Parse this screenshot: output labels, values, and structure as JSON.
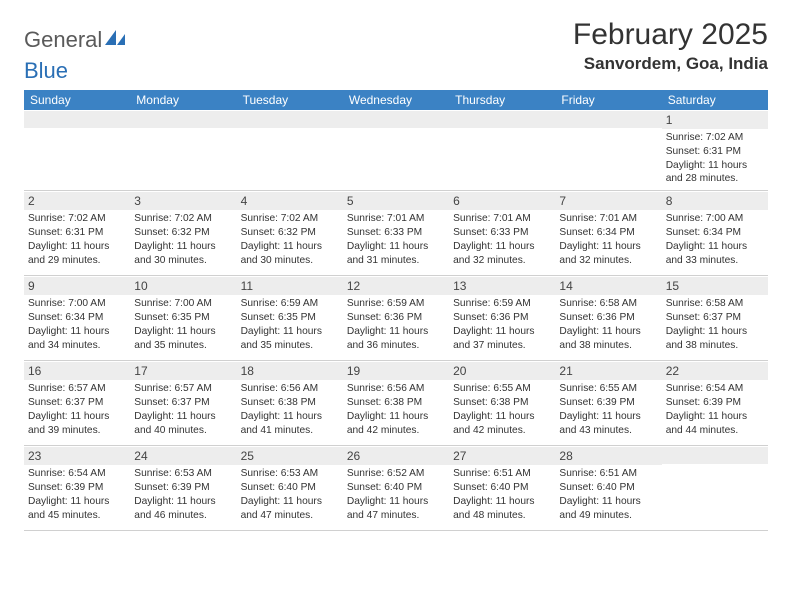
{
  "logo": {
    "text_gray": "General",
    "text_blue": "Blue"
  },
  "title": "February 2025",
  "location": "Sanvordem, Goa, India",
  "colors": {
    "header_bg": "#3b82c4",
    "header_text": "#ffffff",
    "daynum_bg": "#ededed",
    "border": "#d0d0d0",
    "text": "#333333",
    "logo_gray": "#5a5a5a",
    "logo_blue": "#2a6fb5"
  },
  "day_names": [
    "Sunday",
    "Monday",
    "Tuesday",
    "Wednesday",
    "Thursday",
    "Friday",
    "Saturday"
  ],
  "weeks": [
    [
      {
        "empty": true
      },
      {
        "empty": true
      },
      {
        "empty": true
      },
      {
        "empty": true
      },
      {
        "empty": true
      },
      {
        "empty": true
      },
      {
        "day": "1",
        "sunrise": "Sunrise: 7:02 AM",
        "sunset": "Sunset: 6:31 PM",
        "daylight": "Daylight: 11 hours and 28 minutes."
      }
    ],
    [
      {
        "day": "2",
        "sunrise": "Sunrise: 7:02 AM",
        "sunset": "Sunset: 6:31 PM",
        "daylight": "Daylight: 11 hours and 29 minutes."
      },
      {
        "day": "3",
        "sunrise": "Sunrise: 7:02 AM",
        "sunset": "Sunset: 6:32 PM",
        "daylight": "Daylight: 11 hours and 30 minutes."
      },
      {
        "day": "4",
        "sunrise": "Sunrise: 7:02 AM",
        "sunset": "Sunset: 6:32 PM",
        "daylight": "Daylight: 11 hours and 30 minutes."
      },
      {
        "day": "5",
        "sunrise": "Sunrise: 7:01 AM",
        "sunset": "Sunset: 6:33 PM",
        "daylight": "Daylight: 11 hours and 31 minutes."
      },
      {
        "day": "6",
        "sunrise": "Sunrise: 7:01 AM",
        "sunset": "Sunset: 6:33 PM",
        "daylight": "Daylight: 11 hours and 32 minutes."
      },
      {
        "day": "7",
        "sunrise": "Sunrise: 7:01 AM",
        "sunset": "Sunset: 6:34 PM",
        "daylight": "Daylight: 11 hours and 32 minutes."
      },
      {
        "day": "8",
        "sunrise": "Sunrise: 7:00 AM",
        "sunset": "Sunset: 6:34 PM",
        "daylight": "Daylight: 11 hours and 33 minutes."
      }
    ],
    [
      {
        "day": "9",
        "sunrise": "Sunrise: 7:00 AM",
        "sunset": "Sunset: 6:34 PM",
        "daylight": "Daylight: 11 hours and 34 minutes."
      },
      {
        "day": "10",
        "sunrise": "Sunrise: 7:00 AM",
        "sunset": "Sunset: 6:35 PM",
        "daylight": "Daylight: 11 hours and 35 minutes."
      },
      {
        "day": "11",
        "sunrise": "Sunrise: 6:59 AM",
        "sunset": "Sunset: 6:35 PM",
        "daylight": "Daylight: 11 hours and 35 minutes."
      },
      {
        "day": "12",
        "sunrise": "Sunrise: 6:59 AM",
        "sunset": "Sunset: 6:36 PM",
        "daylight": "Daylight: 11 hours and 36 minutes."
      },
      {
        "day": "13",
        "sunrise": "Sunrise: 6:59 AM",
        "sunset": "Sunset: 6:36 PM",
        "daylight": "Daylight: 11 hours and 37 minutes."
      },
      {
        "day": "14",
        "sunrise": "Sunrise: 6:58 AM",
        "sunset": "Sunset: 6:36 PM",
        "daylight": "Daylight: 11 hours and 38 minutes."
      },
      {
        "day": "15",
        "sunrise": "Sunrise: 6:58 AM",
        "sunset": "Sunset: 6:37 PM",
        "daylight": "Daylight: 11 hours and 38 minutes."
      }
    ],
    [
      {
        "day": "16",
        "sunrise": "Sunrise: 6:57 AM",
        "sunset": "Sunset: 6:37 PM",
        "daylight": "Daylight: 11 hours and 39 minutes."
      },
      {
        "day": "17",
        "sunrise": "Sunrise: 6:57 AM",
        "sunset": "Sunset: 6:37 PM",
        "daylight": "Daylight: 11 hours and 40 minutes."
      },
      {
        "day": "18",
        "sunrise": "Sunrise: 6:56 AM",
        "sunset": "Sunset: 6:38 PM",
        "daylight": "Daylight: 11 hours and 41 minutes."
      },
      {
        "day": "19",
        "sunrise": "Sunrise: 6:56 AM",
        "sunset": "Sunset: 6:38 PM",
        "daylight": "Daylight: 11 hours and 42 minutes."
      },
      {
        "day": "20",
        "sunrise": "Sunrise: 6:55 AM",
        "sunset": "Sunset: 6:38 PM",
        "daylight": "Daylight: 11 hours and 42 minutes."
      },
      {
        "day": "21",
        "sunrise": "Sunrise: 6:55 AM",
        "sunset": "Sunset: 6:39 PM",
        "daylight": "Daylight: 11 hours and 43 minutes."
      },
      {
        "day": "22",
        "sunrise": "Sunrise: 6:54 AM",
        "sunset": "Sunset: 6:39 PM",
        "daylight": "Daylight: 11 hours and 44 minutes."
      }
    ],
    [
      {
        "day": "23",
        "sunrise": "Sunrise: 6:54 AM",
        "sunset": "Sunset: 6:39 PM",
        "daylight": "Daylight: 11 hours and 45 minutes."
      },
      {
        "day": "24",
        "sunrise": "Sunrise: 6:53 AM",
        "sunset": "Sunset: 6:39 PM",
        "daylight": "Daylight: 11 hours and 46 minutes."
      },
      {
        "day": "25",
        "sunrise": "Sunrise: 6:53 AM",
        "sunset": "Sunset: 6:40 PM",
        "daylight": "Daylight: 11 hours and 47 minutes."
      },
      {
        "day": "26",
        "sunrise": "Sunrise: 6:52 AM",
        "sunset": "Sunset: 6:40 PM",
        "daylight": "Daylight: 11 hours and 47 minutes."
      },
      {
        "day": "27",
        "sunrise": "Sunrise: 6:51 AM",
        "sunset": "Sunset: 6:40 PM",
        "daylight": "Daylight: 11 hours and 48 minutes."
      },
      {
        "day": "28",
        "sunrise": "Sunrise: 6:51 AM",
        "sunset": "Sunset: 6:40 PM",
        "daylight": "Daylight: 11 hours and 49 minutes."
      },
      {
        "empty": true
      }
    ]
  ]
}
